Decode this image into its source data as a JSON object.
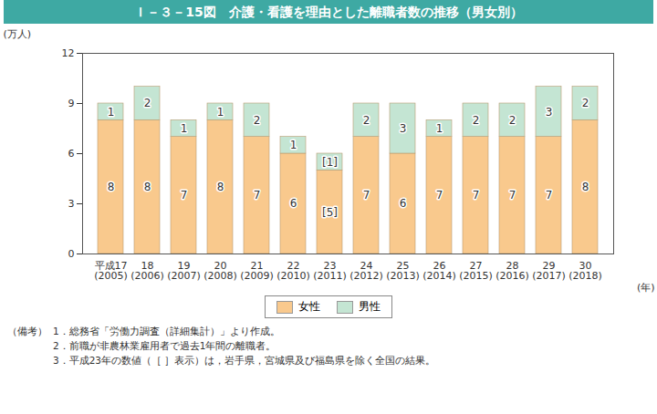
{
  "chart_data": {
    "type": "bar",
    "title": "Ｉ－３－15図　介護・看護を理由とした離職者数の推移（男女別）",
    "y_label": "(万人)",
    "x_label": "(年)",
    "categories": [
      "平成17\n(2005)",
      "18\n(2006)",
      "19\n(2007)",
      "20\n(2008)",
      "21\n(2009)",
      "22\n(2010)",
      "23\n(2011)",
      "24\n(2012)",
      "25\n(2013)",
      "26\n(2014)",
      "27\n(2015)",
      "28\n(2016)",
      "29\n(2017)",
      "30\n(2018)"
    ],
    "series": [
      {
        "name": "女性",
        "color": "#f9c98d",
        "values": [
          8,
          8,
          7,
          8,
          7,
          6,
          5,
          7,
          6,
          7,
          7,
          7,
          7,
          8
        ],
        "value_labels": [
          "8",
          "8",
          "7",
          "8",
          "7",
          "6",
          "[5]",
          "7",
          "6",
          "7",
          "7",
          "7",
          "7",
          "8"
        ]
      },
      {
        "name": "男性",
        "color": "#c4e5d3",
        "values": [
          1,
          2,
          1,
          1,
          2,
          1,
          1,
          2,
          3,
          1,
          2,
          2,
          3,
          2
        ],
        "value_labels": [
          "1",
          "2",
          "1",
          "1",
          "2",
          "1",
          "[1]",
          "2",
          "3",
          "1",
          "2",
          "2",
          "3",
          "2"
        ]
      }
    ],
    "stacked": true,
    "data_labels": true,
    "ylim": [
      0,
      12
    ],
    "yticks": [
      0,
      3,
      6,
      9,
      12
    ],
    "grid": false,
    "legend": "bottom"
  },
  "notes": {
    "label": "（備考）",
    "items": [
      "1．総務省「労働力調査（詳細集計）」より作成。",
      "2．前職が非農林業雇用者で過去1年間の離職者。",
      "3．平成23年の数値（［ ］表示）は，岩手県，宮城県及び福島県を除く全国の結果。"
    ]
  }
}
